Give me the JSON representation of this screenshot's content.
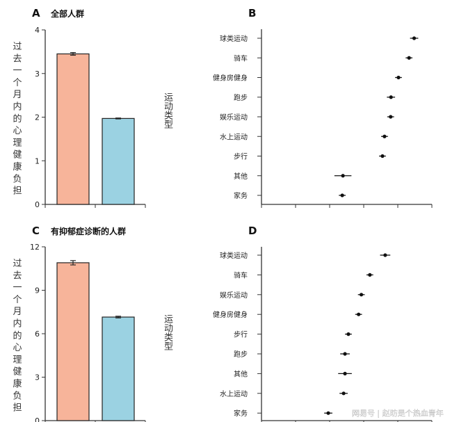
{
  "chart_data": [
    {
      "panel": "A",
      "type": "bar",
      "title": "全部人群",
      "ylabel": "过去一个月内的心理健康负担",
      "xlabel": "",
      "categories": [
        "",
        ""
      ],
      "values": [
        3.45,
        1.97
      ],
      "errors": [
        0.03,
        0.01
      ],
      "colors": [
        "#f7b49a",
        "#9bd2e2"
      ],
      "ylim": [
        0,
        4
      ],
      "yticks": [
        "0",
        "1",
        "2",
        "3",
        "4"
      ],
      "grid": false
    },
    {
      "panel": "B",
      "type": "scatter",
      "title": "",
      "ylabel": "运动类型",
      "xlabel": "",
      "categories": [
        "球类运动",
        "骑车",
        "健身房健身",
        "跑步",
        "娱乐运动",
        "水上运动",
        "步行",
        "其他",
        "家务"
      ],
      "values": [
        4.48,
        4.33,
        4.02,
        3.8,
        3.79,
        3.61,
        3.55,
        2.39,
        2.37
      ],
      "errors": [
        0.12,
        0.1,
        0.1,
        0.12,
        0.1,
        0.1,
        0.1,
        0.25,
        0.1
      ],
      "xlim": [
        0,
        5
      ],
      "xtick_count": 6,
      "grid": false
    },
    {
      "panel": "C",
      "type": "bar",
      "title": "有抑郁症诊断的人群",
      "ylabel": "过去一个月内的心理健康负担",
      "xlabel": "",
      "categories": [
        "",
        ""
      ],
      "values": [
        10.9,
        7.15
      ],
      "errors": [
        0.15,
        0.06
      ],
      "colors": [
        "#f7b49a",
        "#9bd2e2"
      ],
      "ylim": [
        0,
        12
      ],
      "yticks": [
        "0",
        "3",
        "6",
        "9",
        "12"
      ],
      "grid": false
    },
    {
      "panel": "D",
      "type": "scatter",
      "title": "",
      "ylabel": "运动类型",
      "xlabel": "",
      "categories": [
        "球类运动",
        "骑车",
        "娱乐运动",
        "健身房健身",
        "步行",
        "跑步",
        "其他",
        "水上运动",
        "家务"
      ],
      "values": [
        3.63,
        3.18,
        2.93,
        2.85,
        2.55,
        2.45,
        2.45,
        2.41,
        1.96
      ],
      "errors": [
        0.15,
        0.1,
        0.1,
        0.1,
        0.1,
        0.14,
        0.2,
        0.12,
        0.12
      ],
      "xlim": [
        0,
        5
      ],
      "xtick_count": 6,
      "grid": false
    }
  ],
  "watermark": "网易号 | 赵昉是个热血青年"
}
